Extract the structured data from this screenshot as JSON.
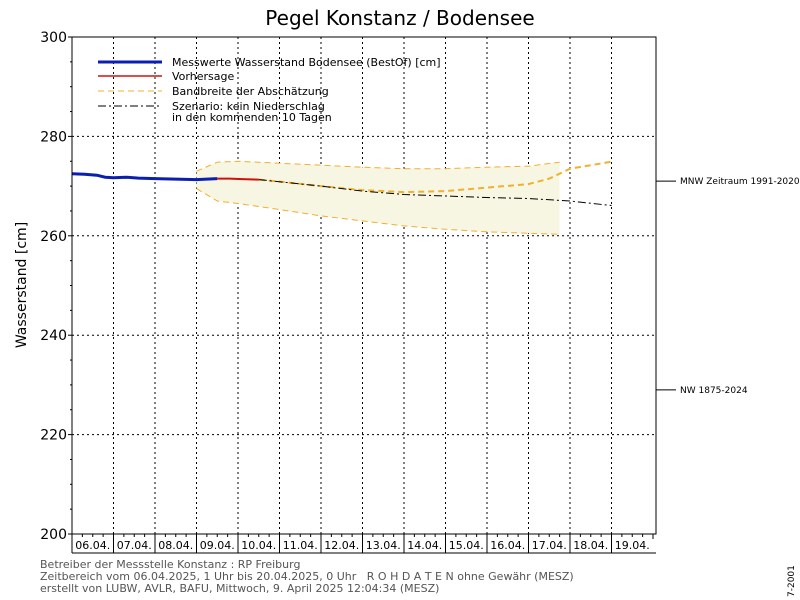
{
  "chart_data": {
    "type": "line",
    "title": "Pegel Konstanz / Bodensee",
    "ylabel": "Wasserstand [cm]",
    "ylim": [
      200,
      300
    ],
    "yticks": [
      200,
      220,
      240,
      260,
      280,
      300
    ],
    "xlim": [
      0,
      14
    ],
    "categories": [
      "06.04.",
      "07.04.",
      "08.04.",
      "09.04.",
      "10.04.",
      "11.04.",
      "12.04.",
      "13.04.",
      "14.04.",
      "15.04.",
      "16.04.",
      "17.04.",
      "18.04.",
      "19.04."
    ],
    "grid": true,
    "legend_position": "top-left",
    "legend": [
      {
        "label": "Messwerte Wasserstand Bodensee  (BestOf)  [cm]",
        "style": "solid-thick",
        "color": "#0a1fb0"
      },
      {
        "label": "Vorhersage",
        "style": "solid",
        "color": "#d01010"
      },
      {
        "label": "Bandbreite der Abschätzung",
        "style": "dashed",
        "color": "#f0b030"
      },
      {
        "label": "Szenario: kein Niederschlag",
        "label2": "in den kommenden 10 Tagen",
        "style": "dashdot",
        "color": "#000000"
      }
    ],
    "series": [
      {
        "name": "Messwerte Wasserstand Bodensee  (BestOf)  [cm]",
        "color": "#0a1fb0",
        "x": [
          0,
          0.3,
          0.6,
          0.8,
          1.0,
          1.3,
          1.6,
          2.0,
          2.5,
          3.0,
          3.5
        ],
        "y": [
          272.5,
          272.4,
          272.2,
          271.8,
          271.7,
          271.8,
          271.6,
          271.5,
          271.4,
          271.3,
          271.5
        ]
      },
      {
        "name": "Vorhersage",
        "color": "#d01010",
        "x": [
          3.5,
          3.8,
          4.1,
          4.5
        ],
        "y": [
          271.5,
          271.5,
          271.4,
          271.3
        ]
      },
      {
        "name": "Bandbreite der Abschätzung",
        "color": "#f0b030",
        "upper_x": [
          3.0,
          3.5,
          4.0,
          5.0,
          6.0,
          7.0,
          8.0,
          9.0,
          10.0,
          11.0,
          11.75
        ],
        "upper_y": [
          273.0,
          274.8,
          275.0,
          274.6,
          274.2,
          273.8,
          273.5,
          273.5,
          273.8,
          274.0,
          274.8
        ],
        "lower_x": [
          3.0,
          3.5,
          4.0,
          5.0,
          6.0,
          7.0,
          8.0,
          9.0,
          10.0,
          11.0,
          11.75
        ],
        "lower_y": [
          269.5,
          267.0,
          266.5,
          265.3,
          264.0,
          263.0,
          262.0,
          261.3,
          260.8,
          260.5,
          260.3
        ],
        "middle_x": [
          4.5,
          5.0,
          6.0,
          7.0,
          8.0,
          9.0,
          10.0,
          11.0,
          11.5,
          12.0,
          13.0
        ],
        "middle_y": [
          271.3,
          270.9,
          270.0,
          269.2,
          268.8,
          269.0,
          269.7,
          270.4,
          271.5,
          273.5,
          274.9
        ]
      },
      {
        "name": "Szenario: kein Niederschlag",
        "color": "#000000",
        "x": [
          4.5,
          6.0,
          7.0,
          8.0,
          9.0,
          10.0,
          11.0,
          12.0,
          13.0
        ],
        "y": [
          271.3,
          270.0,
          269.0,
          268.3,
          268.0,
          267.7,
          267.5,
          267.0,
          266.1
        ]
      }
    ],
    "reference_lines": [
      {
        "label": "MNW Zeitraum 1991-2020",
        "y": 271.0
      },
      {
        "label": "NW 1875-2024",
        "y": 229.0
      }
    ]
  },
  "footer": {
    "line1": "Betreiber der Messstelle Konstanz : RP Freiburg",
    "line2": "Zeitbereich vom 06.04.2025, 1 Uhr bis 20.04.2025, 0 Uhr   R O H D A T E N ohne Gewähr (MESZ)",
    "line3": "erstellt von LUBW, AVLR, BAFU, Mittwoch, 9. April 2025 12:04:34 (MESZ)",
    "version": "7-2001"
  },
  "colors": {
    "measured": "#0a1fb0",
    "forecast": "#d01010",
    "band": "#f0b030",
    "band_fill": "#f7f6e2",
    "scenario": "#000000"
  }
}
